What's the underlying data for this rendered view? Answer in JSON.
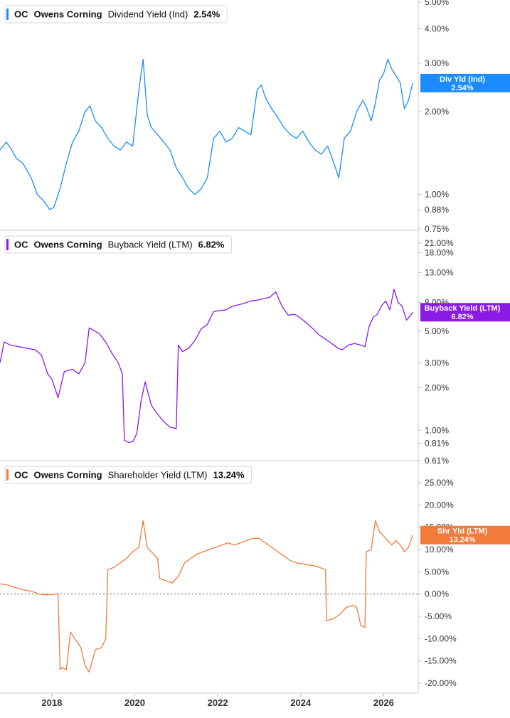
{
  "chart_data": [
    {
      "type": "line",
      "ticker": "OC",
      "company": "Owens Corning",
      "metric": "Dividend Yield (Ind)",
      "last_value": "2.54%",
      "tag_label": "Div Yld (Ind)",
      "color": "#1a8cff",
      "scale": "log",
      "y_ticks": [
        "5.00%",
        "4.00%",
        "3.00%",
        "2.00%",
        "1.00%",
        "0.88%",
        "0.75%"
      ],
      "y_tick_values": [
        5.0,
        4.0,
        3.0,
        2.0,
        1.0,
        0.88,
        0.75
      ],
      "ylim": [
        0.75,
        5.0
      ],
      "x_ticks": [
        "2018",
        "2020",
        "2022",
        "2024",
        "2026"
      ],
      "xlim": [
        2016.75,
        2026.8
      ],
      "series": [
        {
          "x": [
            2016.75,
            2016.9,
            2017.0,
            2017.15,
            2017.3,
            2017.5,
            2017.65,
            2017.8,
            2017.95,
            2018.05,
            2018.2,
            2018.35,
            2018.5,
            2018.65,
            2018.8,
            2018.92,
            2019.05,
            2019.2,
            2019.35,
            2019.5,
            2019.65,
            2019.8,
            2019.95,
            2020.1,
            2020.2,
            2020.3,
            2020.4,
            2020.55,
            2020.7,
            2020.85,
            2021.0,
            2021.15,
            2021.3,
            2021.45,
            2021.6,
            2021.75,
            2021.9,
            2022.05,
            2022.2,
            2022.35,
            2022.5,
            2022.65,
            2022.8,
            2022.95,
            2023.05,
            2023.15,
            2023.3,
            2023.45,
            2023.6,
            2023.75,
            2023.9,
            2024.05,
            2024.2,
            2024.35,
            2024.5,
            2024.65,
            2024.8,
            2024.92,
            2025.05,
            2025.2,
            2025.35,
            2025.5,
            2025.6,
            2025.7,
            2025.8,
            2025.9,
            2026.0,
            2026.1,
            2026.2,
            2026.3,
            2026.4,
            2026.5,
            2026.6,
            2026.7
          ],
          "y": [
            1.45,
            1.55,
            1.48,
            1.35,
            1.3,
            1.15,
            1.0,
            0.95,
            0.88,
            0.9,
            1.05,
            1.3,
            1.55,
            1.7,
            2.0,
            2.1,
            1.85,
            1.75,
            1.6,
            1.5,
            1.45,
            1.55,
            1.5,
            2.4,
            3.1,
            1.95,
            1.75,
            1.65,
            1.55,
            1.45,
            1.25,
            1.15,
            1.05,
            1.0,
            1.05,
            1.15,
            1.6,
            1.7,
            1.55,
            1.6,
            1.75,
            1.7,
            1.65,
            2.4,
            2.5,
            2.25,
            2.05,
            1.9,
            1.75,
            1.65,
            1.6,
            1.7,
            1.55,
            1.45,
            1.4,
            1.5,
            1.3,
            1.15,
            1.6,
            1.7,
            2.0,
            2.2,
            2.05,
            1.85,
            2.15,
            2.6,
            2.75,
            3.1,
            2.85,
            2.7,
            2.55,
            2.05,
            2.2,
            2.54
          ]
        }
      ]
    },
    {
      "type": "line",
      "ticker": "OC",
      "company": "Owens Corning",
      "metric": "Buyback Yield (LTM)",
      "last_value": "6.82%",
      "tag_label": "Buyback Yield (LTM)",
      "color": "#8a1ae6",
      "scale": "log",
      "y_ticks": [
        "21.00%",
        "18.00%",
        "13.00%",
        "8.00%",
        "5.00%",
        "3.00%",
        "2.00%",
        "1.00%",
        "0.81%",
        "0.61%"
      ],
      "y_tick_values": [
        21.0,
        18.0,
        13.0,
        8.0,
        5.0,
        3.0,
        2.0,
        1.0,
        0.81,
        0.61
      ],
      "ylim": [
        0.61,
        21.0
      ],
      "x_ticks": [
        "2018",
        "2020",
        "2022",
        "2024",
        "2026"
      ],
      "xlim": [
        2016.75,
        2026.8
      ],
      "series": [
        {
          "x": [
            2016.75,
            2016.85,
            2017.0,
            2017.2,
            2017.4,
            2017.6,
            2017.75,
            2017.9,
            2018.0,
            2018.15,
            2018.3,
            2018.5,
            2018.65,
            2018.8,
            2018.9,
            2019.0,
            2019.15,
            2019.3,
            2019.45,
            2019.6,
            2019.7,
            2019.75,
            2019.85,
            2019.95,
            2020.05,
            2020.15,
            2020.25,
            2020.4,
            2020.55,
            2020.7,
            2020.85,
            2021.0,
            2021.05,
            2021.15,
            2021.3,
            2021.45,
            2021.6,
            2021.75,
            2021.9,
            2022.05,
            2022.2,
            2022.35,
            2022.5,
            2022.65,
            2022.8,
            2022.95,
            2023.1,
            2023.25,
            2023.4,
            2023.55,
            2023.7,
            2023.85,
            2024.0,
            2024.15,
            2024.3,
            2024.45,
            2024.6,
            2024.75,
            2024.9,
            2025.0,
            2025.15,
            2025.3,
            2025.45,
            2025.55,
            2025.65,
            2025.75,
            2025.85,
            2025.95,
            2026.05,
            2026.15,
            2026.25,
            2026.35,
            2026.45,
            2026.55,
            2026.65,
            2026.7
          ],
          "y": [
            3.0,
            4.2,
            4.0,
            3.9,
            3.8,
            3.7,
            3.4,
            2.5,
            2.3,
            1.7,
            2.6,
            2.7,
            2.5,
            3.0,
            5.3,
            5.1,
            4.8,
            4.2,
            3.5,
            3.0,
            2.5,
            0.85,
            0.82,
            0.83,
            0.95,
            1.6,
            2.2,
            1.5,
            1.3,
            1.15,
            1.05,
            1.03,
            4.0,
            3.6,
            3.8,
            4.3,
            5.2,
            5.6,
            6.9,
            7.0,
            7.1,
            7.5,
            7.7,
            7.9,
            8.2,
            8.3,
            8.5,
            8.7,
            9.5,
            7.5,
            6.5,
            6.6,
            6.2,
            5.7,
            5.2,
            4.7,
            4.4,
            4.1,
            3.8,
            3.7,
            4.0,
            4.1,
            4.0,
            3.9,
            5.4,
            6.3,
            6.6,
            7.6,
            8.2,
            7.1,
            9.9,
            8.0,
            7.5,
            6.0,
            6.5,
            6.82
          ]
        }
      ]
    },
    {
      "type": "line",
      "ticker": "OC",
      "company": "Owens Corning",
      "metric": "Shareholder Yield (LTM)",
      "last_value": "13.24%",
      "tag_label": "Shr Yld (LTM)",
      "color": "#f27a3a",
      "scale": "linear",
      "y_ticks": [
        "25.00%",
        "20.00%",
        "15.00%",
        "10.00%",
        "5.00%",
        "0.00%",
        "-5.00%",
        "-10.00%",
        "-15.00%",
        "-20.00%"
      ],
      "y_tick_values": [
        25,
        20,
        15,
        10,
        5,
        0,
        -5,
        -10,
        -15,
        -20
      ],
      "ylim": [
        -20,
        25
      ],
      "x_ticks": [
        "2018",
        "2020",
        "2022",
        "2024",
        "2026"
      ],
      "xlim": [
        2016.75,
        2026.8
      ],
      "zero_line": true,
      "series": [
        {
          "x": [
            2016.75,
            2016.95,
            2017.1,
            2017.3,
            2017.55,
            2017.7,
            2017.85,
            2018.0,
            2018.15,
            2018.2,
            2018.25,
            2018.35,
            2018.45,
            2018.55,
            2018.7,
            2018.8,
            2018.9,
            2019.05,
            2019.2,
            2019.3,
            2019.35,
            2019.5,
            2019.65,
            2019.8,
            2019.95,
            2020.1,
            2020.2,
            2020.3,
            2020.45,
            2020.55,
            2020.6,
            2020.75,
            2020.9,
            2021.05,
            2021.2,
            2021.35,
            2021.5,
            2021.65,
            2021.8,
            2021.95,
            2022.1,
            2022.25,
            2022.4,
            2022.55,
            2022.7,
            2022.85,
            2023.0,
            2023.15,
            2023.3,
            2023.45,
            2023.6,
            2023.75,
            2023.9,
            2024.05,
            2024.2,
            2024.35,
            2024.5,
            2024.6,
            2024.62,
            2024.8,
            2024.95,
            2025.1,
            2025.25,
            2025.35,
            2025.45,
            2025.55,
            2025.58,
            2025.7,
            2025.8,
            2025.9,
            2026.0,
            2026.1,
            2026.2,
            2026.3,
            2026.4,
            2026.5,
            2026.6,
            2026.7
          ],
          "y": [
            2.3,
            2.0,
            1.5,
            1.0,
            0.5,
            0.0,
            -0.2,
            -0.1,
            0.1,
            -17.0,
            -16.5,
            -17.0,
            -8.5,
            -10.0,
            -12.0,
            -16.0,
            -17.5,
            -12.5,
            -12.0,
            -10.0,
            5.5,
            6.0,
            7.0,
            8.0,
            9.5,
            10.5,
            16.5,
            10.5,
            9.0,
            8.0,
            3.5,
            3.0,
            2.5,
            4.0,
            7.0,
            8.0,
            9.0,
            9.5,
            10.0,
            10.5,
            11.0,
            11.5,
            11.0,
            11.5,
            12.0,
            12.5,
            12.5,
            11.5,
            10.5,
            9.5,
            8.5,
            7.5,
            7.0,
            6.8,
            6.5,
            6.3,
            5.8,
            5.5,
            -6.0,
            -5.5,
            -4.5,
            -3.0,
            -2.5,
            -3.0,
            -7.0,
            -7.5,
            9.5,
            10.0,
            16.5,
            14.0,
            13.0,
            12.0,
            11.0,
            12.0,
            11.0,
            9.5,
            10.5,
            13.24
          ]
        }
      ]
    }
  ]
}
